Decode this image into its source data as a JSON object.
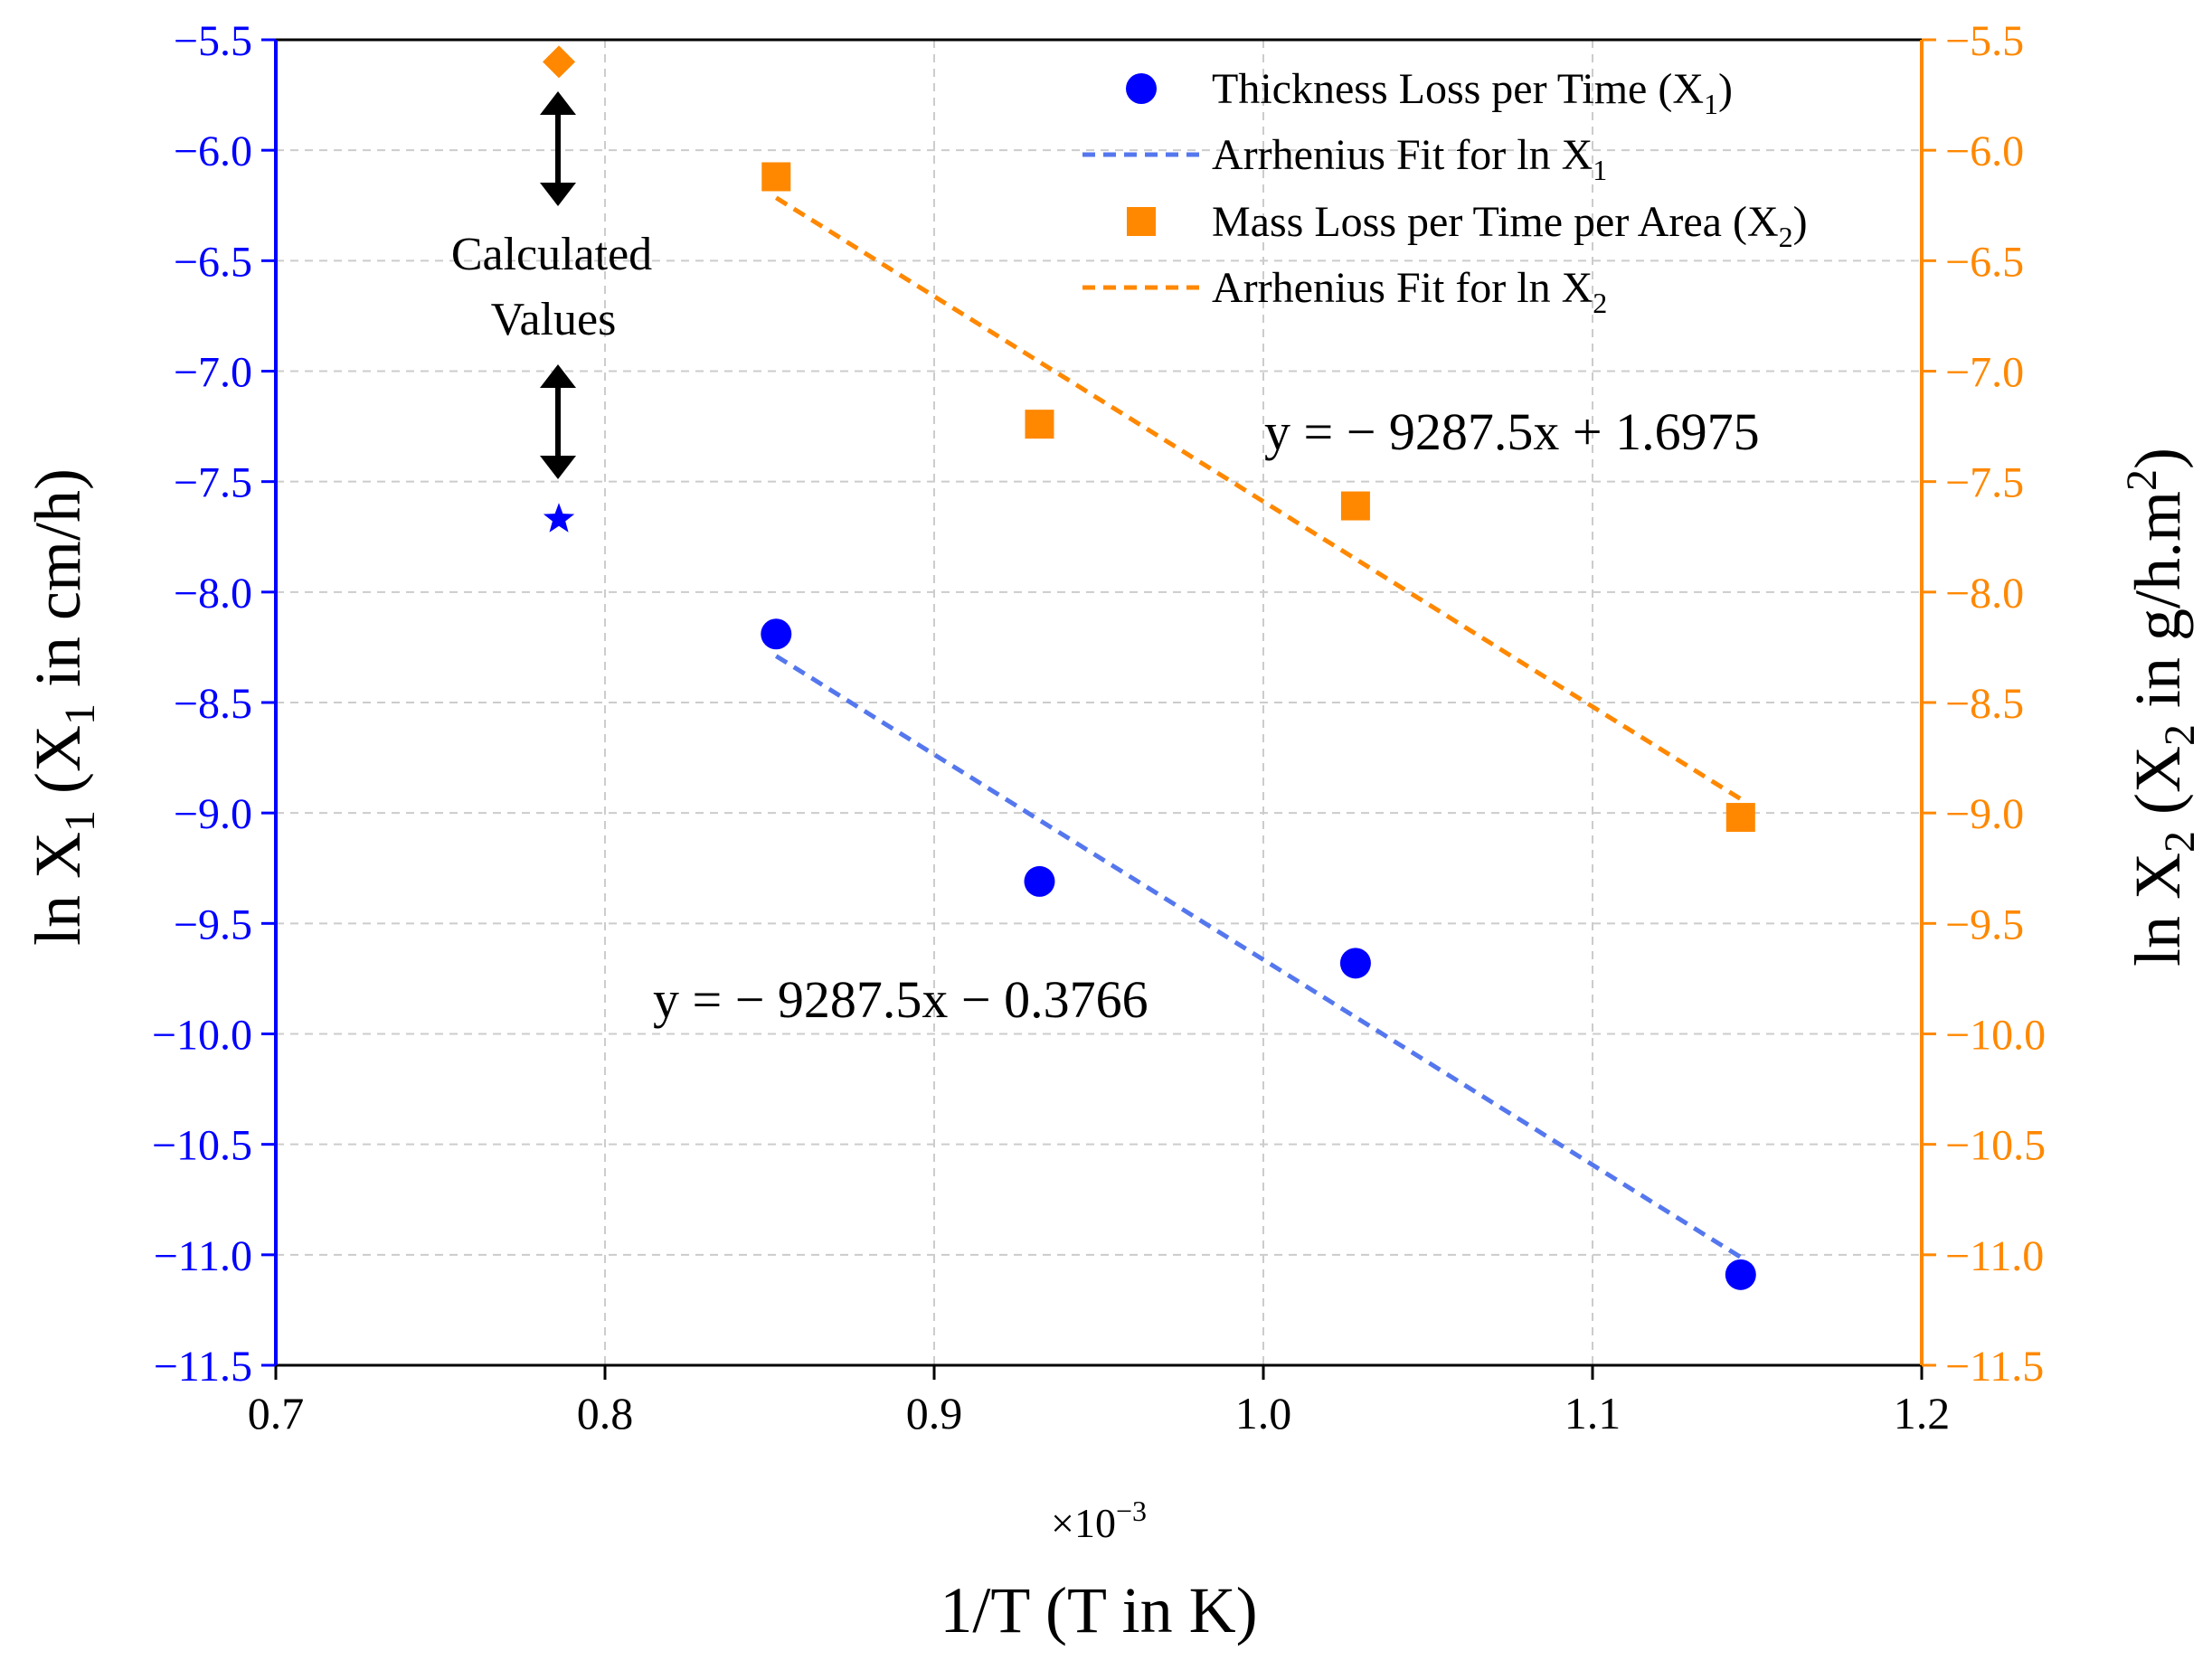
{
  "chart_data": {
    "type": "scatter",
    "title": "",
    "xlabel": "1/T (T in K)",
    "x_multiplier": "×10",
    "x_multiplier_exponent": "−3",
    "xlim": [
      0.7,
      1.2
    ],
    "x_ticks": [
      0.7,
      0.8,
      0.9,
      1.0,
      1.1,
      1.2
    ],
    "x_tick_labels": [
      "0.7",
      "0.8",
      "0.9",
      "1.0",
      "1.1",
      "1.2"
    ],
    "ylim": [
      -11.5,
      -5.5
    ],
    "y_ticks": [
      -5.5,
      -6.0,
      -6.5,
      -7.0,
      -7.5,
      -8.0,
      -8.5,
      -9.0,
      -9.5,
      -10.0,
      -10.5,
      -11.0,
      -11.5
    ],
    "y_tick_labels": [
      "−5.5",
      "−6.0",
      "−6.5",
      "−7.0",
      "−7.5",
      "−8.0",
      "−8.5",
      "−9.0",
      "−9.5",
      "−10.0",
      "−10.5",
      "−11.0",
      "−11.5"
    ],
    "ylabel_left": {
      "prefix": "ln X",
      "sub1": "1",
      "middle": " (X",
      "sub2": "1",
      "suffix": " in cm/h)"
    },
    "ylabel_right": {
      "prefix": "ln X",
      "sub1": "2",
      "middle": " (X",
      "sub2": "2",
      "suffix": " in g/h.m",
      "sup": "2",
      "end": ")"
    },
    "grid": true,
    "colors": {
      "x1": "#0000ff",
      "x1_fit": "#5577ee",
      "x2": "#ff8800",
      "x2_fit": "#ff8800",
      "axis": "#000000",
      "grid": "#cccccc",
      "arrow": "#000000"
    },
    "series": [
      {
        "name": "Thickness Loss per Time (X1)",
        "axis": "left",
        "marker": "circle",
        "x": [
          0.852,
          0.932,
          1.028,
          1.145
        ],
        "y": [
          -8.19,
          -9.31,
          -9.68,
          -11.09
        ]
      },
      {
        "name": "Mass Loss per Time per Area (X2)",
        "axis": "right",
        "marker": "square",
        "x": [
          0.852,
          0.932,
          1.028,
          1.145
        ],
        "y": [
          -6.12,
          -7.24,
          -7.61,
          -9.02
        ]
      }
    ],
    "fits": [
      {
        "name": "Arrhenius Fit for ln X1",
        "axis": "left",
        "slope": -9287.5,
        "intercept": -0.3766,
        "x_range": [
          0.852,
          1.145
        ],
        "equation": "y = − 9287.5x − 0.3766"
      },
      {
        "name": "Arrhenius Fit for ln X2",
        "axis": "right",
        "slope": -9287.5,
        "intercept": 1.6975,
        "x_range": [
          0.852,
          1.145
        ],
        "equation": "y = − 9287.5x + 1.6975"
      }
    ],
    "calculated_points": [
      {
        "axis": "right",
        "marker": "diamond",
        "x": 0.786,
        "y": -5.6
      },
      {
        "axis": "left",
        "marker": "star",
        "x": 0.786,
        "y": -7.67
      }
    ],
    "annotation": {
      "line1": "Calculated",
      "line2": "Values"
    },
    "legend": {
      "position": "top-right",
      "items": [
        {
          "label_main": "Thickness Loss per Time (X",
          "label_sub": "1",
          "label_end": ")",
          "kind": "circle",
          "color": "#0000ff"
        },
        {
          "label_main": "Arrhenius Fit for ln X",
          "label_sub": "1",
          "label_end": "",
          "kind": "dash",
          "color": "#5577ee"
        },
        {
          "label_main": "Mass Loss per Time per Area (X",
          "label_sub": "2",
          "label_end": ")",
          "kind": "square",
          "color": "#ff8800"
        },
        {
          "label_main": "Arrhenius Fit for ln X",
          "label_sub": "2",
          "label_end": "",
          "kind": "dash",
          "color": "#ff8800"
        }
      ]
    }
  }
}
